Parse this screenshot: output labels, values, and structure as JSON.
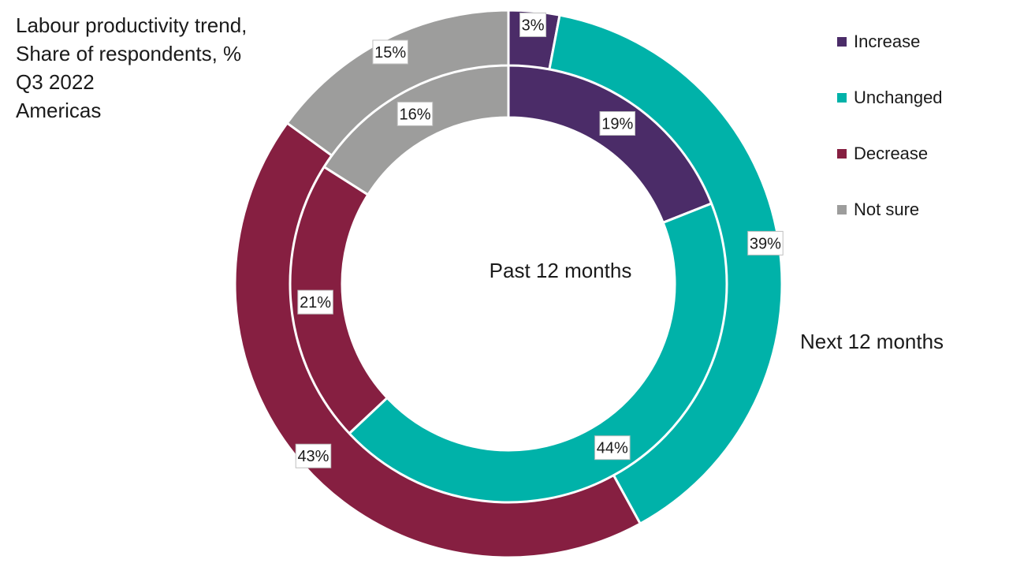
{
  "chart_data": {
    "type": "pie",
    "subtype": "double-donut",
    "title_lines": [
      "Labour productivity trend,",
      "Share of respondents, %",
      "Q3 2022",
      "Americas"
    ],
    "categories": [
      "Increase",
      "Unchanged",
      "Decrease",
      "Not sure"
    ],
    "colors": [
      "#4b2c68",
      "#00b2a9",
      "#861f41",
      "#9d9d9c"
    ],
    "series": [
      {
        "name": "Past 12 months",
        "ring": "inner",
        "values": [
          19,
          44,
          21,
          16
        ]
      },
      {
        "name": "Next 12 months",
        "ring": "outer",
        "values": [
          3,
          39,
          43,
          15
        ]
      }
    ],
    "value_suffix": "%",
    "legend_position": "top-right"
  }
}
